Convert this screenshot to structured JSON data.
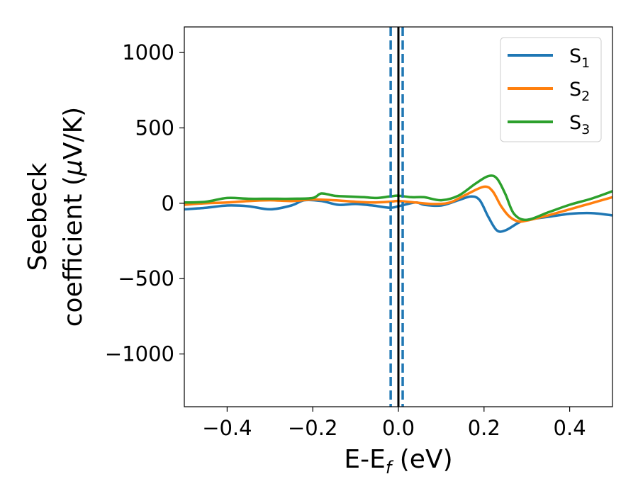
{
  "chart_data": {
    "type": "line",
    "title": "",
    "xlabel": {
      "main": "E-E",
      "sub": "f",
      "unit": " (eV)"
    },
    "ylabel": {
      "line1": "Seebeck",
      "line2_prefix": "coefficient  (",
      "mu": "μ",
      "line2_suffix": "V/K)"
    },
    "xlim": [
      -0.5,
      0.5
    ],
    "ylim": [
      -1350,
      1170
    ],
    "xticks": [
      -0.4,
      -0.2,
      0.0,
      0.2,
      0.4
    ],
    "xtick_labels": [
      "−0.4",
      "−0.2",
      "0.0",
      "0.2",
      "0.4"
    ],
    "yticks": [
      1000,
      500,
      0,
      -500,
      -1000
    ],
    "ytick_labels": [
      "1000",
      "500",
      "0",
      "−500",
      "−1000"
    ],
    "legend_position": "top-right",
    "series": [
      {
        "name": "S",
        "sub": "1",
        "color": "#1f77b4",
        "points": [
          [
            -0.5,
            -40
          ],
          [
            -0.45,
            -30
          ],
          [
            -0.4,
            -15
          ],
          [
            -0.35,
            -20
          ],
          [
            -0.3,
            -40
          ],
          [
            -0.25,
            -15
          ],
          [
            -0.22,
            20
          ],
          [
            -0.18,
            15
          ],
          [
            -0.14,
            -10
          ],
          [
            -0.1,
            -5
          ],
          [
            -0.06,
            -15
          ],
          [
            -0.02,
            -30
          ],
          [
            0.0,
            -20
          ],
          [
            0.04,
            5
          ],
          [
            0.06,
            -10
          ],
          [
            0.1,
            -15
          ],
          [
            0.14,
            20
          ],
          [
            0.17,
            45
          ],
          [
            0.19,
            20
          ],
          [
            0.21,
            -90
          ],
          [
            0.23,
            -180
          ],
          [
            0.25,
            -180
          ],
          [
            0.28,
            -130
          ],
          [
            0.3,
            -110
          ],
          [
            0.35,
            -90
          ],
          [
            0.4,
            -70
          ],
          [
            0.45,
            -65
          ],
          [
            0.5,
            -80
          ]
        ]
      },
      {
        "name": "S",
        "sub": "2",
        "color": "#ff7f0e",
        "points": [
          [
            -0.5,
            -10
          ],
          [
            -0.45,
            0
          ],
          [
            -0.4,
            5
          ],
          [
            -0.35,
            15
          ],
          [
            -0.3,
            20
          ],
          [
            -0.25,
            15
          ],
          [
            -0.2,
            25
          ],
          [
            -0.15,
            20
          ],
          [
            -0.1,
            10
          ],
          [
            -0.06,
            5
          ],
          [
            -0.02,
            10
          ],
          [
            0.0,
            15
          ],
          [
            0.04,
            5
          ],
          [
            0.08,
            -5
          ],
          [
            0.12,
            5
          ],
          [
            0.16,
            60
          ],
          [
            0.2,
            110
          ],
          [
            0.22,
            80
          ],
          [
            0.24,
            -20
          ],
          [
            0.26,
            -90
          ],
          [
            0.28,
            -120
          ],
          [
            0.3,
            -115
          ],
          [
            0.35,
            -80
          ],
          [
            0.4,
            -40
          ],
          [
            0.45,
            0
          ],
          [
            0.5,
            40
          ]
        ]
      },
      {
        "name": "S",
        "sub": "3",
        "color": "#2ca02c",
        "points": [
          [
            -0.5,
            5
          ],
          [
            -0.45,
            10
          ],
          [
            -0.4,
            35
          ],
          [
            -0.35,
            30
          ],
          [
            -0.3,
            30
          ],
          [
            -0.25,
            30
          ],
          [
            -0.2,
            35
          ],
          [
            -0.18,
            65
          ],
          [
            -0.15,
            50
          ],
          [
            -0.12,
            45
          ],
          [
            -0.08,
            40
          ],
          [
            -0.05,
            35
          ],
          [
            -0.02,
            45
          ],
          [
            0.0,
            50
          ],
          [
            0.03,
            40
          ],
          [
            0.06,
            40
          ],
          [
            0.1,
            20
          ],
          [
            0.14,
            50
          ],
          [
            0.18,
            130
          ],
          [
            0.21,
            180
          ],
          [
            0.23,
            165
          ],
          [
            0.25,
            60
          ],
          [
            0.27,
            -70
          ],
          [
            0.3,
            -110
          ],
          [
            0.35,
            -60
          ],
          [
            0.4,
            -10
          ],
          [
            0.45,
            30
          ],
          [
            0.5,
            80
          ]
        ]
      }
    ],
    "vlines": [
      {
        "x": -0.018,
        "color": "#1f77b4",
        "style": "dashed"
      },
      {
        "x": 0.01,
        "color": "#1f77b4",
        "style": "dashed"
      },
      {
        "x": 0.0,
        "color": "#000000",
        "style": "solid"
      }
    ]
  }
}
